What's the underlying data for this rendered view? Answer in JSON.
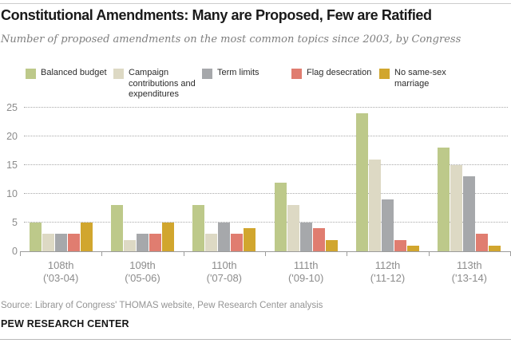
{
  "header": {
    "title": "Constitutional Amendments: Many are Proposed, Few are Ratified",
    "subtitle": "Number of proposed amendments on the most common topics since 2003, by Congress"
  },
  "footer": {
    "source": "Source: Library of Congress' THOMAS website, Pew Research Center analysis",
    "brand": "PEW RESEARCH CENTER"
  },
  "colors": {
    "balanced_budget": "#bdc98a",
    "campaign": "#ddd9c4",
    "term_limits": "#a6a8ab",
    "flag_desecration": "#e07d70",
    "no_same_sex_marriage": "#d1a62e",
    "gridline": "#a9a9a9",
    "axis": "#9b9b9b"
  },
  "chart_data": {
    "type": "bar",
    "title": "Constitutional Amendments: Many are Proposed, Few are Ratified",
    "subtitle": "Number of proposed amendments on the most common topics since 2003, by Congress",
    "categories": [
      {
        "label": "108th",
        "years": "('03-04)"
      },
      {
        "label": "109th",
        "years": "('05-06)"
      },
      {
        "label": "110th",
        "years": "('07-08)"
      },
      {
        "label": "111th",
        "years": "('09-10)"
      },
      {
        "label": "112th",
        "years": "('11-12)"
      },
      {
        "label": "113th",
        "years": "('13-14)"
      }
    ],
    "series": [
      {
        "name": "Balanced budget",
        "color": "#bdc98a",
        "values": [
          5,
          8,
          8,
          12,
          24,
          18
        ]
      },
      {
        "name": "Campaign contributions and expenditures",
        "color": "#ddd9c4",
        "values": [
          3,
          2,
          3,
          8,
          16,
          15
        ]
      },
      {
        "name": "Term limits",
        "color": "#a6a8ab",
        "values": [
          3,
          3,
          5,
          5,
          9,
          13
        ]
      },
      {
        "name": "Flag desecration",
        "color": "#e07d70",
        "values": [
          3,
          3,
          3,
          4,
          2,
          3
        ]
      },
      {
        "name": "No same-sex marriage",
        "color": "#d1a62e",
        "values": [
          5,
          5,
          4,
          2,
          1,
          1
        ]
      }
    ],
    "ylim": [
      0,
      25
    ],
    "yticks": [
      0,
      5,
      10,
      15,
      20,
      25
    ],
    "grid": "horizontal-dotted",
    "legend_position": "top",
    "xlabel": "",
    "ylabel": ""
  }
}
